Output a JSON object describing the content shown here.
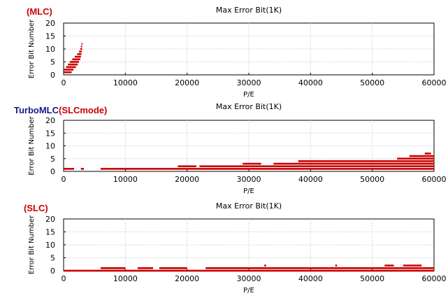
{
  "chart_data": [
    {
      "type": "scatter",
      "label": {
        "parts": [
          {
            "text": "(MLC)",
            "color": "#cc0000"
          }
        ]
      },
      "title": "Max Error Bit(1K)",
      "xlabel": "P/E",
      "ylabel": "Error Bit Number",
      "xlim": [
        0,
        60000
      ],
      "ylim": [
        0,
        20
      ],
      "xticks": [
        0,
        10000,
        20000,
        30000,
        40000,
        50000,
        60000
      ],
      "yticks": [
        0,
        5,
        10,
        15,
        20
      ],
      "grid": true,
      "series": [
        {
          "color": "#cc0000",
          "segments": [
            {
              "x0": 0,
              "x1": 1300,
              "y": 1
            },
            {
              "x0": 0,
              "x1": 1600,
              "y": 2
            },
            {
              "x0": 400,
              "x1": 2000,
              "y": 3
            },
            {
              "x0": 700,
              "x1": 2300,
              "y": 4
            },
            {
              "x0": 1000,
              "x1": 2500,
              "y": 5
            },
            {
              "x0": 1400,
              "x1": 2700,
              "y": 6
            },
            {
              "x0": 1800,
              "x1": 2800,
              "y": 7
            },
            {
              "x0": 2200,
              "x1": 2900,
              "y": 8
            },
            {
              "x0": 2500,
              "x1": 2950,
              "y": 9
            },
            {
              "x0": 2700,
              "x1": 3000,
              "y": 10
            },
            {
              "x0": 2800,
              "x1": 3000,
              "y": 11
            },
            {
              "x0": 2900,
              "x1": 3000,
              "y": 12
            }
          ]
        }
      ]
    },
    {
      "type": "scatter",
      "label": {
        "parts": [
          {
            "text": "TurboMLC",
            "color": "#1a1a8c"
          },
          {
            "text": "(SLCmode)",
            "color": "#cc0000"
          }
        ]
      },
      "title": "Max Error Bit(1K)",
      "xlabel": "P/E",
      "ylabel": "Error Bit Number",
      "xlim": [
        0,
        60000
      ],
      "ylim": [
        0,
        20
      ],
      "xticks": [
        0,
        10000,
        20000,
        30000,
        40000,
        50000,
        60000
      ],
      "yticks": [
        0,
        5,
        10,
        15,
        20
      ],
      "grid": true,
      "series": [
        {
          "color": "#cc0000",
          "segments": [
            {
              "x0": 0,
              "x1": 1700,
              "y": 1
            },
            {
              "x0": 6000,
              "x1": 60000,
              "y": 1
            },
            {
              "x0": 2800,
              "x1": 3300,
              "y": 1
            },
            {
              "x0": 18500,
              "x1": 21500,
              "y": 2
            },
            {
              "x0": 22000,
              "x1": 60000,
              "y": 2
            },
            {
              "x0": 29000,
              "x1": 32000,
              "y": 3
            },
            {
              "x0": 34000,
              "x1": 60000,
              "y": 3
            },
            {
              "x0": 38000,
              "x1": 60000,
              "y": 4
            },
            {
              "x0": 54000,
              "x1": 60000,
              "y": 5
            },
            {
              "x0": 56000,
              "x1": 60000,
              "y": 6
            },
            {
              "x0": 58500,
              "x1": 59500,
              "y": 7
            }
          ]
        }
      ]
    },
    {
      "type": "scatter",
      "label": {
        "parts": [
          {
            "text": "(SLC)",
            "color": "#cc0000"
          }
        ]
      },
      "title": "Max Error Bit(1K)",
      "xlabel": "P/E",
      "ylabel": "Error Bit Number",
      "xlim": [
        0,
        60000
      ],
      "ylim": [
        0,
        20
      ],
      "xticks": [
        0,
        10000,
        20000,
        30000,
        40000,
        50000,
        60000
      ],
      "yticks": [
        0,
        5,
        10,
        15,
        20
      ],
      "grid": true,
      "series": [
        {
          "color": "#cc0000",
          "segments": [
            {
              "x0": 0,
              "x1": 60000,
              "y": 0
            },
            {
              "x0": 6000,
              "x1": 10000,
              "y": 1
            },
            {
              "x0": 12000,
              "x1": 14500,
              "y": 1
            },
            {
              "x0": 15500,
              "x1": 20000,
              "y": 1
            },
            {
              "x0": 23000,
              "x1": 60000,
              "y": 1
            },
            {
              "x0": 52000,
              "x1": 53500,
              "y": 2
            },
            {
              "x0": 55000,
              "x1": 58000,
              "y": 2
            },
            {
              "x0": 32500,
              "x1": 32800,
              "y": 2
            },
            {
              "x0": 44000,
              "x1": 44300,
              "y": 2
            }
          ]
        }
      ]
    }
  ]
}
